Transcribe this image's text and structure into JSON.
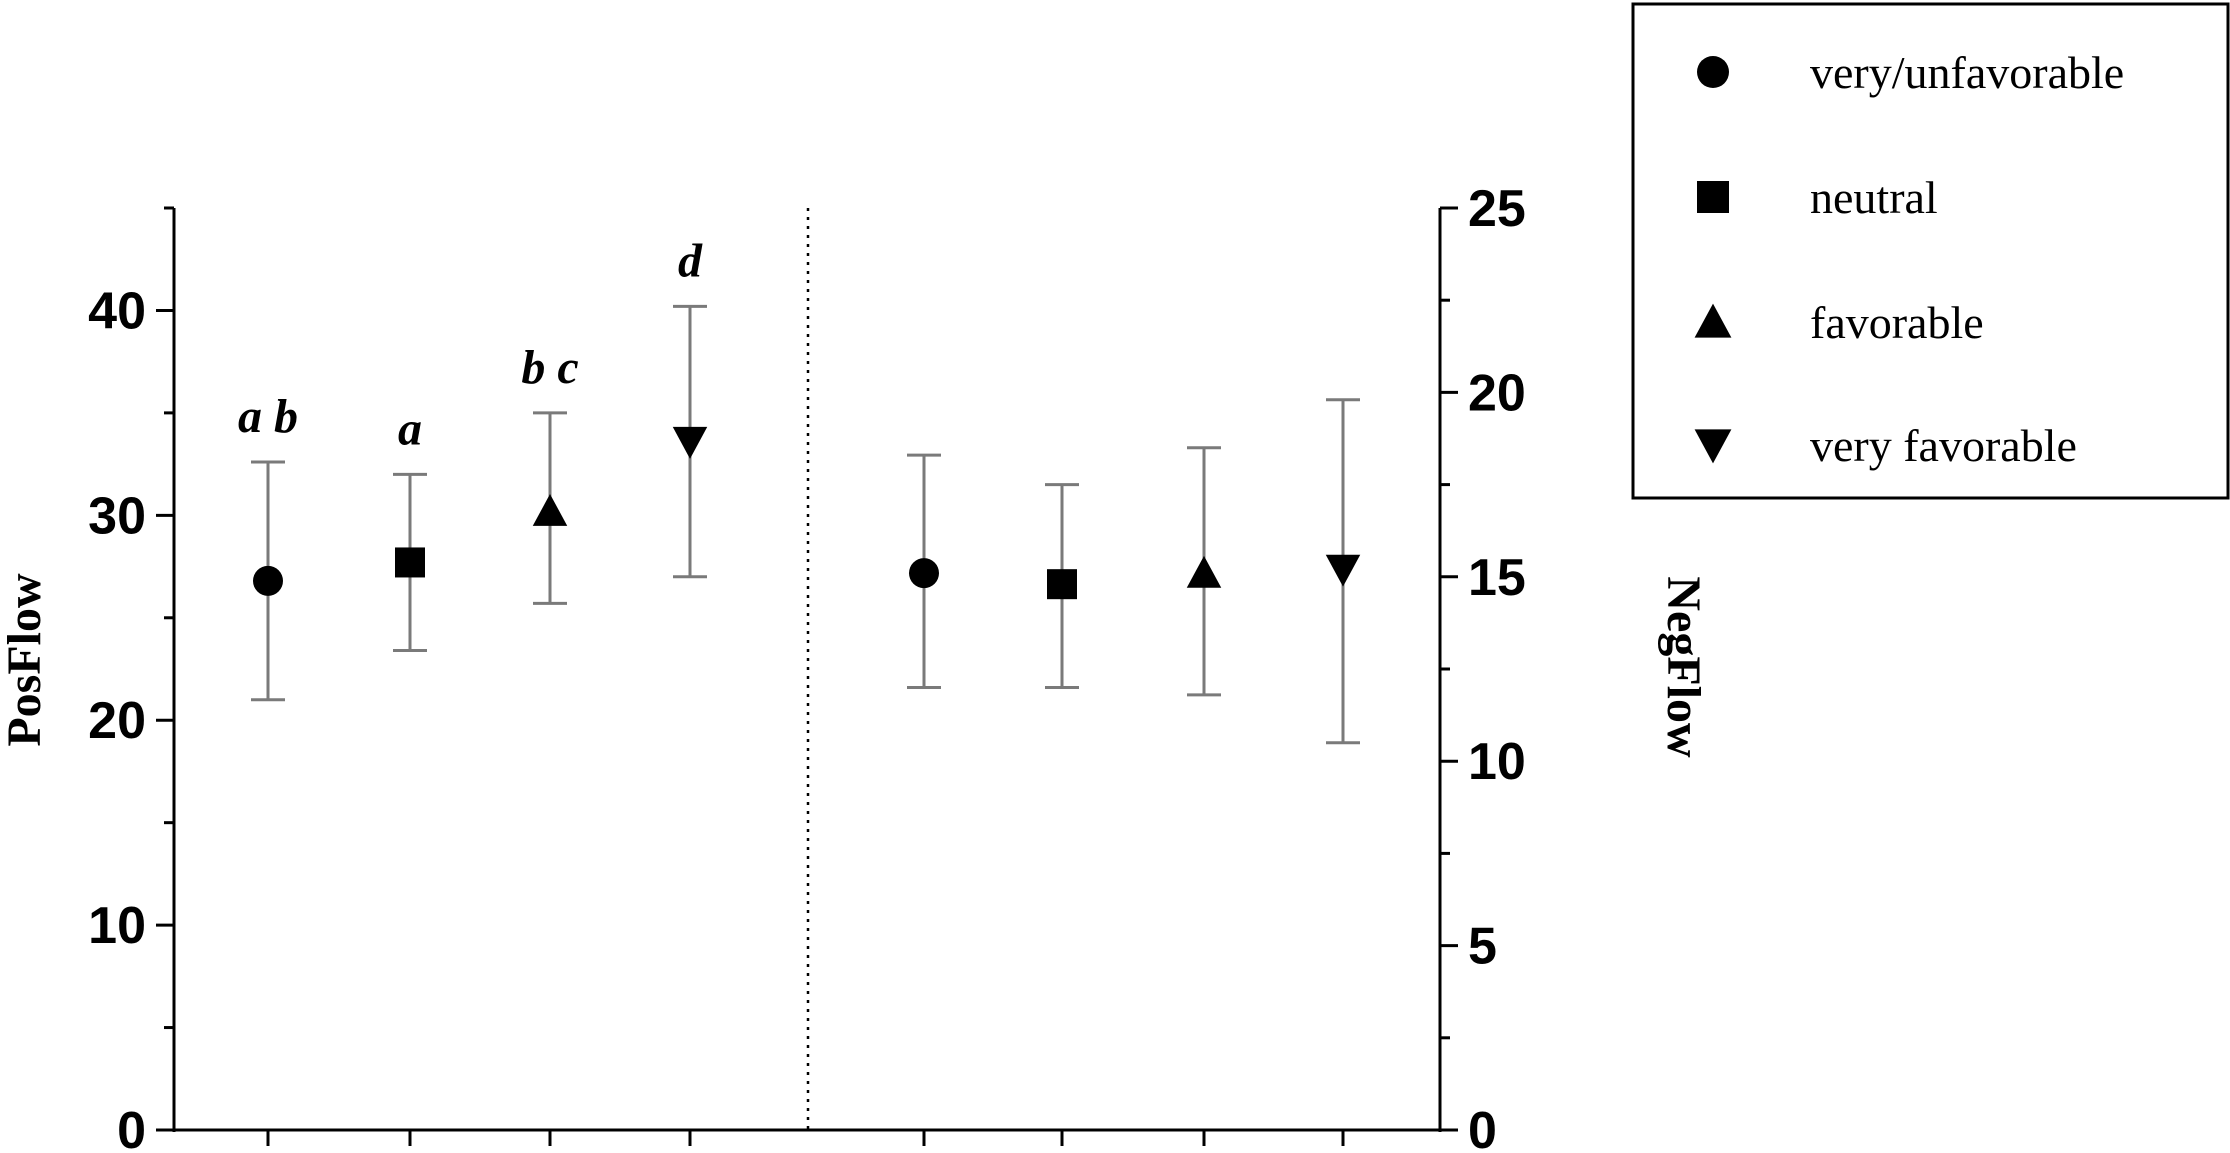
{
  "chart_data": {
    "type": "scatter",
    "title": "",
    "left_axis": {
      "label": "PosFlow",
      "ylim": [
        0,
        45
      ],
      "ticks": [
        0,
        10,
        20,
        30,
        40
      ],
      "minor_step": 5
    },
    "right_axis": {
      "label": "NegFlow",
      "ylim": [
        0,
        25
      ],
      "ticks": [
        0,
        5,
        10,
        15,
        20,
        25
      ],
      "minor_step": 2.5
    },
    "legend": {
      "position": "top-right",
      "entries": [
        {
          "name": "very/unfavorable",
          "marker": "circle"
        },
        {
          "name": "neutral",
          "marker": "square"
        },
        {
          "name": "favorable",
          "marker": "triangle-up"
        },
        {
          "name": "very favorable",
          "marker": "triangle-down"
        }
      ]
    },
    "panels": [
      {
        "axis": "left",
        "variable": "PosFlow",
        "points": [
          {
            "group": "very/unfavorable",
            "marker": "circle",
            "mean": 26.8,
            "lower": 21.0,
            "upper": 32.6,
            "sig": "a b"
          },
          {
            "group": "neutral",
            "marker": "square",
            "mean": 27.7,
            "lower": 23.4,
            "upper": 32.0,
            "sig": "a"
          },
          {
            "group": "favorable",
            "marker": "triangle-up",
            "mean": 30.2,
            "lower": 25.7,
            "upper": 35.0,
            "sig": "b c"
          },
          {
            "group": "very favorable",
            "marker": "triangle-down",
            "mean": 33.6,
            "lower": 27.0,
            "upper": 40.2,
            "sig": "d"
          }
        ]
      },
      {
        "axis": "right",
        "variable": "NegFlow",
        "points": [
          {
            "group": "very/unfavorable",
            "marker": "circle",
            "mean": 15.1,
            "lower": 12.0,
            "upper": 18.3,
            "sig": ""
          },
          {
            "group": "neutral",
            "marker": "square",
            "mean": 14.8,
            "lower": 12.0,
            "upper": 17.5,
            "sig": ""
          },
          {
            "group": "favorable",
            "marker": "triangle-up",
            "mean": 15.1,
            "lower": 11.8,
            "upper": 18.5,
            "sig": ""
          },
          {
            "group": "very favorable",
            "marker": "triangle-down",
            "mean": 15.2,
            "lower": 10.5,
            "upper": 19.8,
            "sig": ""
          }
        ]
      }
    ],
    "colors": {
      "markers": "#000000",
      "error_bars": "#7a7a7a",
      "axes": "#000000",
      "divider": "#000000"
    }
  }
}
